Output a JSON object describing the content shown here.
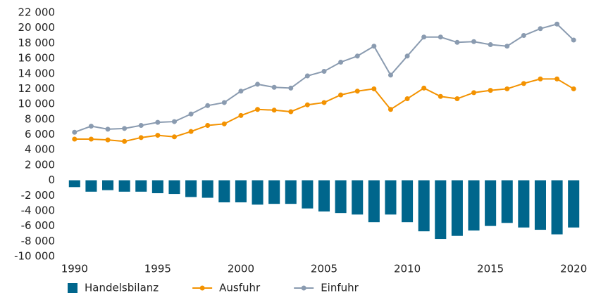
{
  "chart_data": {
    "type": "bar-line",
    "x": [
      1990,
      1991,
      1992,
      1993,
      1994,
      1995,
      1996,
      1997,
      1998,
      1999,
      2000,
      2001,
      2002,
      2003,
      2004,
      2005,
      2006,
      2007,
      2008,
      2009,
      2010,
      2011,
      2012,
      2013,
      2014,
      2015,
      2016,
      2017,
      2018,
      2019,
      2020
    ],
    "xlim": [
      1989.5,
      2020.5
    ],
    "xticks": [
      1990,
      1995,
      2000,
      2005,
      2010,
      2015,
      2020
    ],
    "ylim": [
      -10000,
      22000
    ],
    "yticks": [
      {
        "value": -10000,
        "label": "-10 000"
      },
      {
        "value": -8000,
        "label": "-8 000"
      },
      {
        "value": -6000,
        "label": "-6 000"
      },
      {
        "value": -4000,
        "label": "-4 000"
      },
      {
        "value": -2000,
        "label": "-2 000"
      },
      0,
      {
        "value": 2000,
        "label": "2 000"
      },
      {
        "value": 4000,
        "label": "4 000"
      },
      {
        "value": 6000,
        "label": "6 000"
      },
      {
        "value": 8000,
        "label": "8 000"
      },
      {
        "value": 10000,
        "label": "10 000"
      },
      {
        "value": 12000,
        "label": "12 000"
      },
      {
        "value": 14000,
        "label": "14 000"
      },
      {
        "value": 16000,
        "label": "16 000"
      },
      {
        "value": 18000,
        "label": "18 000"
      },
      {
        "value": 20000,
        "label": "20 000"
      },
      {
        "value": 22000,
        "label": "22 000"
      }
    ],
    "series": [
      {
        "name": "Handelsbilanz",
        "type": "bar",
        "color": "#00668c",
        "values": [
          -900,
          -1500,
          -1300,
          -1500,
          -1500,
          -1700,
          -1800,
          -2200,
          -2300,
          -2900,
          -2900,
          -3200,
          -3100,
          -3100,
          -3700,
          -4100,
          -4300,
          -4500,
          -5500,
          -4500,
          -5500,
          -6700,
          -7700,
          -7300,
          -6600,
          -6000,
          -5600,
          -6200,
          -6500,
          -7100,
          -6200
        ]
      },
      {
        "name": "Ausfuhr",
        "type": "line",
        "color": "#f39200",
        "values": [
          5400,
          5400,
          5300,
          5100,
          5600,
          5900,
          5700,
          6400,
          7200,
          7400,
          8500,
          9300,
          9200,
          9000,
          9900,
          10200,
          11200,
          11700,
          12000,
          9300,
          10700,
          12100,
          11000,
          10700,
          11500,
          11800,
          12000,
          12700,
          13300,
          13300,
          12000
        ]
      },
      {
        "name": "Einfuhr",
        "type": "line",
        "color": "#8a9bb0",
        "values": [
          6300,
          7100,
          6700,
          6800,
          7200,
          7600,
          7700,
          8700,
          9800,
          10200,
          11700,
          12600,
          12200,
          12100,
          13700,
          14300,
          15500,
          16300,
          17600,
          13800,
          16300,
          18800,
          18800,
          18100,
          18200,
          17800,
          17600,
          19000,
          19900,
          20500,
          18400
        ]
      }
    ]
  }
}
